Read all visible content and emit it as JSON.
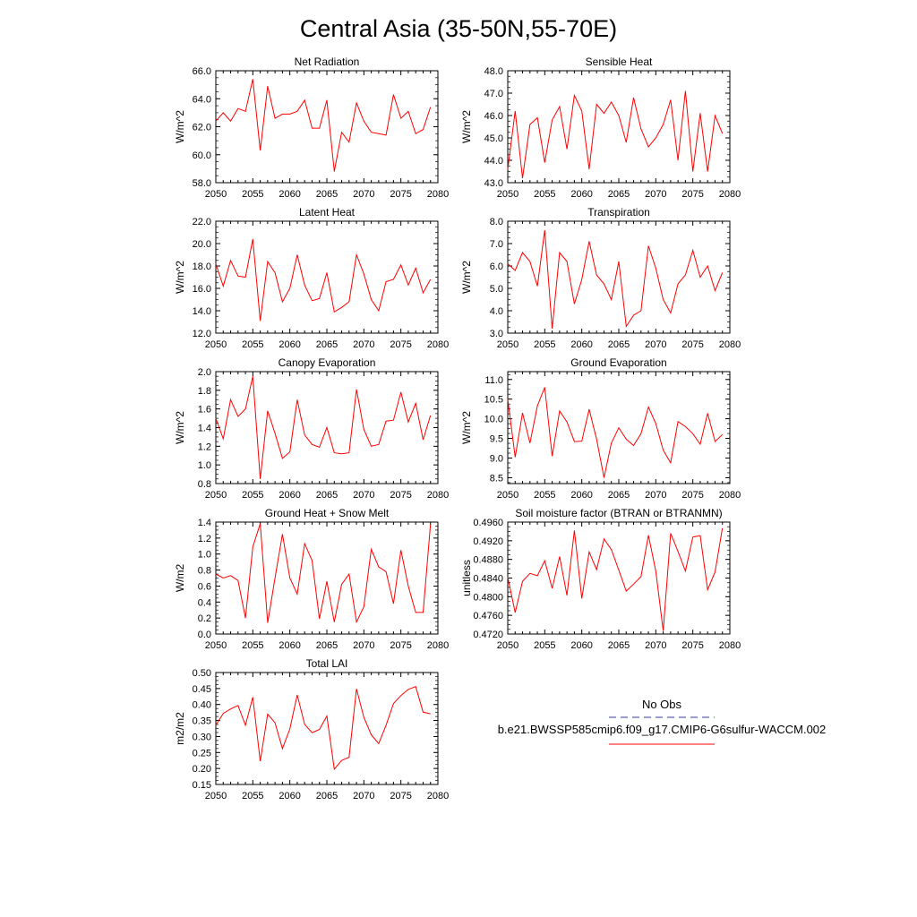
{
  "figure_title": "Central Asia (35-50N,55-70E)",
  "legend": {
    "obs_label": "No Obs",
    "obs_color": "#3a3a9a",
    "model_label": "b.e21.BWSSP585cmip6.f09_g17.CMIP6-G6sulfur-WACCM.002",
    "model_color": "#ff0000"
  },
  "chart_data": [
    {
      "type": "line",
      "title": "Net Radiation",
      "xlabel": "",
      "ylabel": "W/m^2",
      "xlim": [
        2050,
        2080
      ],
      "ylim": [
        58.0,
        66.0
      ],
      "xticks": [
        2050,
        2055,
        2060,
        2065,
        2070,
        2075,
        2080
      ],
      "yticks": [
        "58.0",
        "60.0",
        "62.0",
        "64.0",
        "66.0"
      ],
      "x": [
        2050,
        2051,
        2052,
        2053,
        2054,
        2055,
        2056,
        2057,
        2058,
        2059,
        2060,
        2061,
        2062,
        2063,
        2064,
        2065,
        2066,
        2067,
        2068,
        2069,
        2070,
        2071,
        2072,
        2073,
        2074,
        2075,
        2076,
        2077,
        2078,
        2079
      ],
      "values": [
        62.4,
        63.0,
        62.4,
        63.3,
        63.1,
        65.4,
        60.3,
        64.9,
        62.6,
        62.9,
        62.9,
        63.1,
        63.9,
        61.9,
        61.9,
        63.9,
        58.8,
        61.6,
        60.9,
        63.7,
        62.4,
        61.6,
        61.5,
        61.4,
        64.3,
        62.6,
        63.1,
        61.5,
        61.8,
        63.4
      ],
      "series_color": "#ff0000"
    },
    {
      "type": "line",
      "title": "Sensible Heat",
      "xlabel": "",
      "ylabel": "W/m^2",
      "xlim": [
        2050,
        2080
      ],
      "ylim": [
        43.0,
        48.0
      ],
      "xticks": [
        2050,
        2055,
        2060,
        2065,
        2070,
        2075,
        2080
      ],
      "yticks": [
        "43.0",
        "44.0",
        "45.0",
        "46.0",
        "47.0",
        "48.0"
      ],
      "x": [
        2050,
        2051,
        2052,
        2053,
        2054,
        2055,
        2056,
        2057,
        2058,
        2059,
        2060,
        2061,
        2062,
        2063,
        2064,
        2065,
        2066,
        2067,
        2068,
        2069,
        2070,
        2071,
        2072,
        2073,
        2074,
        2075,
        2076,
        2077,
        2078,
        2079
      ],
      "values": [
        43.6,
        46.2,
        43.2,
        45.6,
        45.9,
        43.9,
        45.8,
        46.4,
        44.5,
        46.9,
        46.2,
        43.6,
        46.5,
        46.1,
        46.6,
        46.0,
        44.8,
        46.8,
        45.4,
        44.6,
        45.0,
        45.6,
        46.7,
        44.0,
        47.1,
        43.5,
        46.1,
        43.5,
        46.0,
        45.2
      ],
      "series_color": "#ff0000"
    },
    {
      "type": "line",
      "title": "Latent Heat",
      "xlabel": "",
      "ylabel": "W/m^2",
      "xlim": [
        2050,
        2080
      ],
      "ylim": [
        12.0,
        22.0
      ],
      "xticks": [
        2050,
        2055,
        2060,
        2065,
        2070,
        2075,
        2080
      ],
      "yticks": [
        "12.0",
        "14.0",
        "16.0",
        "18.0",
        "20.0",
        "22.0"
      ],
      "x": [
        2050,
        2051,
        2052,
        2053,
        2054,
        2055,
        2056,
        2057,
        2058,
        2059,
        2060,
        2061,
        2062,
        2063,
        2064,
        2065,
        2066,
        2067,
        2068,
        2069,
        2070,
        2071,
        2072,
        2073,
        2074,
        2075,
        2076,
        2077,
        2078,
        2079
      ],
      "values": [
        18.2,
        16.2,
        18.5,
        17.1,
        17.0,
        20.4,
        13.1,
        18.4,
        17.4,
        14.8,
        16.0,
        19.0,
        16.3,
        14.9,
        15.1,
        17.4,
        13.9,
        14.3,
        14.8,
        19.0,
        17.3,
        15.0,
        14.0,
        16.6,
        16.8,
        18.1,
        16.3,
        17.8,
        15.6,
        16.8
      ],
      "series_color": "#ff0000"
    },
    {
      "type": "line",
      "title": "Transpiration",
      "xlabel": "",
      "ylabel": "W/m^2",
      "xlim": [
        2050,
        2080
      ],
      "ylim": [
        3.0,
        8.0
      ],
      "xticks": [
        2050,
        2055,
        2060,
        2065,
        2070,
        2075,
        2080
      ],
      "yticks": [
        "3.0",
        "4.0",
        "5.0",
        "6.0",
        "7.0",
        "8.0"
      ],
      "x": [
        2050,
        2051,
        2052,
        2053,
        2054,
        2055,
        2056,
        2057,
        2058,
        2059,
        2060,
        2061,
        2062,
        2063,
        2064,
        2065,
        2066,
        2067,
        2068,
        2069,
        2070,
        2071,
        2072,
        2073,
        2074,
        2075,
        2076,
        2077,
        2078,
        2079
      ],
      "values": [
        6.1,
        5.8,
        6.6,
        6.2,
        5.1,
        7.6,
        3.2,
        6.6,
        6.2,
        4.3,
        5.4,
        7.1,
        5.6,
        5.2,
        4.5,
        6.2,
        3.3,
        3.8,
        4.0,
        6.9,
        5.9,
        4.5,
        3.9,
        5.2,
        5.6,
        6.7,
        5.5,
        6.0,
        4.9,
        5.7
      ],
      "series_color": "#ff0000"
    },
    {
      "type": "line",
      "title": "Canopy Evaporation",
      "xlabel": "",
      "ylabel": "W/m^2",
      "xlim": [
        2050,
        2080
      ],
      "ylim": [
        0.8,
        2.0
      ],
      "xticks": [
        2050,
        2055,
        2060,
        2065,
        2070,
        2075,
        2080
      ],
      "yticks": [
        "0.8",
        "1.0",
        "1.2",
        "1.4",
        "1.6",
        "1.8",
        "2.0"
      ],
      "x": [
        2050,
        2051,
        2052,
        2053,
        2054,
        2055,
        2056,
        2057,
        2058,
        2059,
        2060,
        2061,
        2062,
        2063,
        2064,
        2065,
        2066,
        2067,
        2068,
        2069,
        2070,
        2071,
        2072,
        2073,
        2074,
        2075,
        2076,
        2077,
        2078,
        2079
      ],
      "values": [
        1.5,
        1.28,
        1.7,
        1.52,
        1.6,
        1.95,
        0.85,
        1.58,
        1.34,
        1.07,
        1.14,
        1.7,
        1.32,
        1.22,
        1.19,
        1.4,
        1.13,
        1.12,
        1.13,
        1.81,
        1.38,
        1.2,
        1.22,
        1.47,
        1.48,
        1.78,
        1.46,
        1.66,
        1.27,
        1.53
      ],
      "series_color": "#ff0000"
    },
    {
      "type": "line",
      "title": "Ground Evaporation",
      "xlabel": "",
      "ylabel": "W/m^2",
      "xlim": [
        2050,
        2080
      ],
      "ylim": [
        8.35,
        11.2
      ],
      "xticks": [
        2050,
        2055,
        2060,
        2065,
        2070,
        2075,
        2080
      ],
      "yticks": [
        "8.5",
        "9.0",
        "9.5",
        "10.0",
        "10.5",
        "11.0"
      ],
      "x": [
        2050,
        2051,
        2052,
        2053,
        2054,
        2055,
        2056,
        2057,
        2058,
        2059,
        2060,
        2061,
        2062,
        2063,
        2064,
        2065,
        2066,
        2067,
        2068,
        2069,
        2070,
        2071,
        2072,
        2073,
        2074,
        2075,
        2076,
        2077,
        2078,
        2079
      ],
      "values": [
        10.5,
        9.02,
        10.15,
        9.38,
        10.33,
        10.8,
        9.05,
        10.2,
        9.92,
        9.42,
        9.43,
        10.24,
        9.48,
        8.5,
        9.38,
        9.77,
        9.48,
        9.32,
        9.62,
        10.3,
        9.88,
        9.2,
        8.88,
        9.93,
        9.8,
        9.62,
        9.35,
        10.14,
        9.42,
        9.6
      ],
      "series_color": "#ff0000"
    },
    {
      "type": "line",
      "title": "Ground Heat + Snow Melt",
      "xlabel": "",
      "ylabel": "W/m2",
      "xlim": [
        2050,
        2080
      ],
      "ylim": [
        0.0,
        1.4
      ],
      "xticks": [
        2050,
        2055,
        2060,
        2065,
        2070,
        2075,
        2080
      ],
      "yticks": [
        "0.0",
        "0.2",
        "0.4",
        "0.6",
        "0.8",
        "1.0",
        "1.2",
        "1.4"
      ],
      "x": [
        2050,
        2051,
        2052,
        2053,
        2054,
        2055,
        2056,
        2057,
        2058,
        2059,
        2060,
        2061,
        2062,
        2063,
        2064,
        2065,
        2066,
        2067,
        2068,
        2069,
        2070,
        2071,
        2072,
        2073,
        2074,
        2075,
        2076,
        2077,
        2078,
        2079
      ],
      "values": [
        0.75,
        0.7,
        0.73,
        0.67,
        0.2,
        1.09,
        1.38,
        0.14,
        0.7,
        1.25,
        0.7,
        0.5,
        1.13,
        0.92,
        0.19,
        0.66,
        0.15,
        0.62,
        0.75,
        0.15,
        0.34,
        1.06,
        0.84,
        0.78,
        0.38,
        1.05,
        0.6,
        0.27,
        0.27,
        1.37
      ],
      "series_color": "#ff0000"
    },
    {
      "type": "line",
      "title": "Soil moisture factor (BTRAN or BTRANMN)",
      "xlabel": "",
      "ylabel": "unitless",
      "xlim": [
        2050,
        2080
      ],
      "ylim": [
        0.472,
        0.496
      ],
      "xticks": [
        2050,
        2055,
        2060,
        2065,
        2070,
        2075,
        2080
      ],
      "yticks": [
        "0.4720",
        "0.4760",
        "0.4800",
        "0.4840",
        "0.4880",
        "0.4920",
        "0.4960"
      ],
      "x": [
        2050,
        2051,
        2052,
        2053,
        2054,
        2055,
        2056,
        2057,
        2058,
        2059,
        2060,
        2061,
        2062,
        2063,
        2064,
        2065,
        2066,
        2067,
        2068,
        2069,
        2070,
        2071,
        2072,
        2073,
        2074,
        2075,
        2076,
        2077,
        2078,
        2079
      ],
      "values": [
        0.4842,
        0.4766,
        0.4833,
        0.485,
        0.4845,
        0.4877,
        0.4818,
        0.4886,
        0.4803,
        0.4942,
        0.4796,
        0.4896,
        0.4858,
        0.4924,
        0.4901,
        0.4857,
        0.4812,
        0.4827,
        0.4843,
        0.4932,
        0.4855,
        0.4727,
        0.4936,
        0.4897,
        0.4855,
        0.4928,
        0.4931,
        0.4815,
        0.4853,
        0.4947
      ],
      "series_color": "#ff0000"
    },
    {
      "type": "line",
      "title": "Total LAI",
      "xlabel": "",
      "ylabel": "m2/m2",
      "xlim": [
        2050,
        2080
      ],
      "ylim": [
        0.15,
        0.5
      ],
      "xticks": [
        2050,
        2055,
        2060,
        2065,
        2070,
        2075,
        2080
      ],
      "yticks": [
        "0.15",
        "0.20",
        "0.25",
        "0.30",
        "0.35",
        "0.40",
        "0.45",
        "0.50"
      ],
      "x": [
        2050,
        2051,
        2052,
        2053,
        2054,
        2055,
        2056,
        2057,
        2058,
        2059,
        2060,
        2061,
        2062,
        2063,
        2064,
        2065,
        2066,
        2067,
        2068,
        2069,
        2070,
        2071,
        2072,
        2073,
        2074,
        2075,
        2076,
        2077,
        2078,
        2079
      ],
      "values": [
        0.335,
        0.372,
        0.386,
        0.397,
        0.335,
        0.423,
        0.223,
        0.37,
        0.343,
        0.262,
        0.324,
        0.43,
        0.338,
        0.312,
        0.322,
        0.364,
        0.198,
        0.225,
        0.235,
        0.449,
        0.36,
        0.305,
        0.278,
        0.335,
        0.403,
        0.428,
        0.447,
        0.456,
        0.376,
        0.371
      ],
      "series_color": "#ff0000"
    }
  ]
}
